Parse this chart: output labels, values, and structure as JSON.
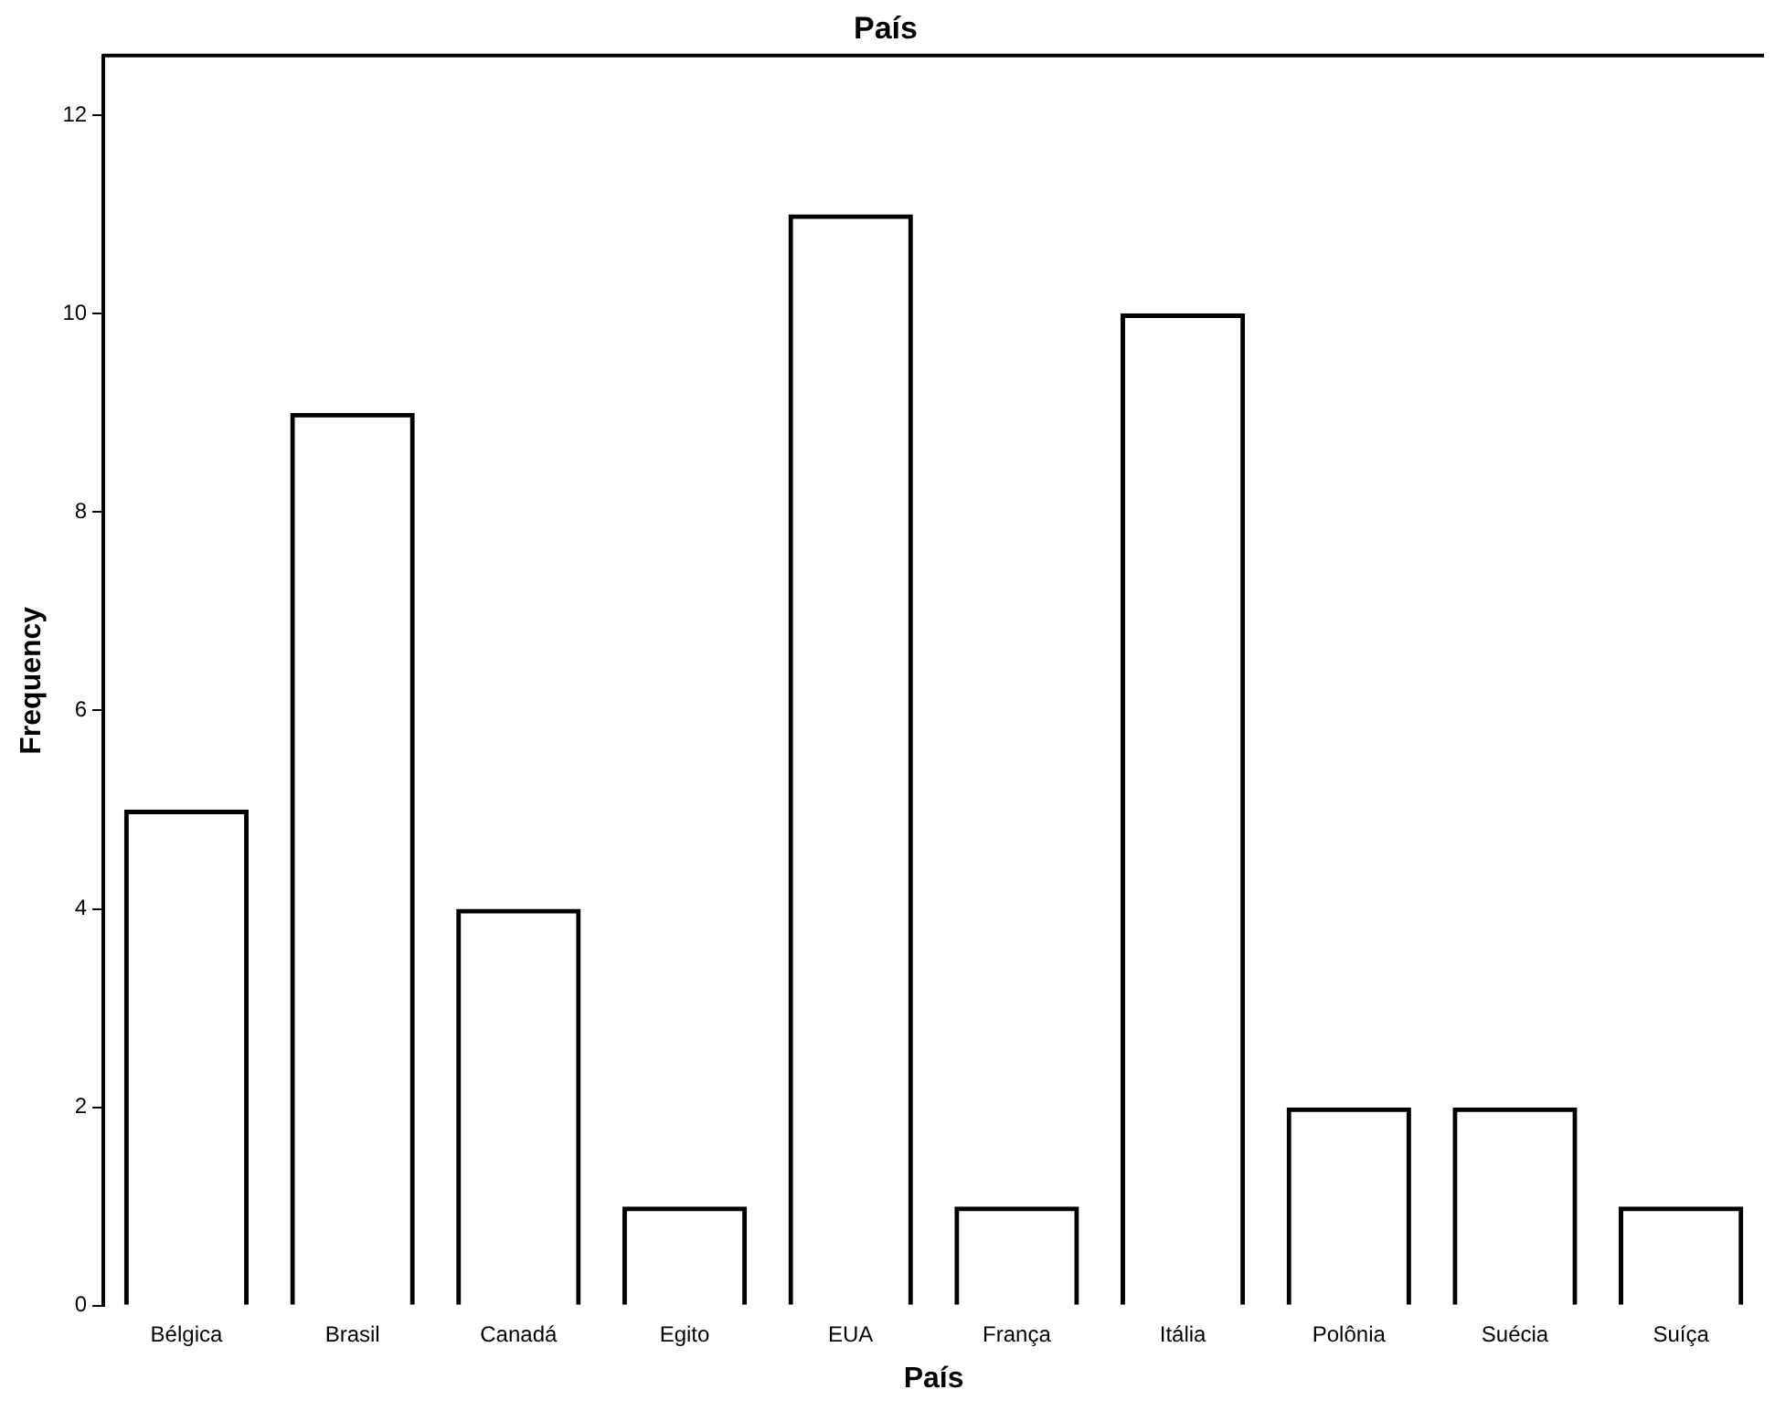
{
  "chart_data": {
    "type": "bar",
    "title": "País",
    "xlabel": "País",
    "ylabel": "Frequency",
    "categories": [
      "Bélgica",
      "Brasil",
      "Canadá",
      "Egito",
      "EUA",
      "França",
      "Itália",
      "Polônia",
      "Suécia",
      "Suíça"
    ],
    "values": [
      5,
      9,
      4,
      1,
      11,
      1,
      10,
      2,
      2,
      1
    ],
    "color": "#000000",
    "ylim": [
      0,
      12.6
    ],
    "yticks": [
      0,
      2,
      4,
      6,
      8,
      10,
      12
    ],
    "grid": false,
    "legend": false
  }
}
